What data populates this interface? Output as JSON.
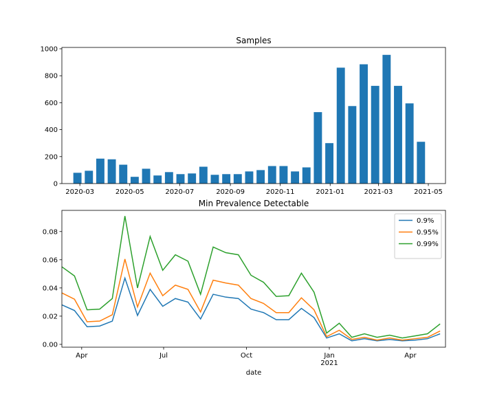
{
  "chart_data": [
    {
      "type": "bar",
      "title": "Samples",
      "xlabel": "",
      "ylabel": "",
      "color": "#1f77b4",
      "xlim": [
        "2020-02-08",
        "2021-05-22"
      ],
      "ylim": [
        0,
        1010
      ],
      "bar_width_days": 10,
      "x_ticks": [
        {
          "date": "2020-03-01",
          "label": "2020-03"
        },
        {
          "date": "2020-05-01",
          "label": "2020-05"
        },
        {
          "date": "2020-07-01",
          "label": "2020-07"
        },
        {
          "date": "2020-09-01",
          "label": "2020-09"
        },
        {
          "date": "2020-11-01",
          "label": "2020-11"
        },
        {
          "date": "2021-01-01",
          "label": "2021-01"
        },
        {
          "date": "2021-03-01",
          "label": "2021-03"
        },
        {
          "date": "2021-05-01",
          "label": "2021-05"
        }
      ],
      "y_ticks": [
        0,
        200,
        400,
        600,
        800,
        1000
      ],
      "dates": [
        "2020-02-27",
        "2020-03-12",
        "2020-03-26",
        "2020-04-09",
        "2020-04-23",
        "2020-05-07",
        "2020-05-21",
        "2020-06-04",
        "2020-06-18",
        "2020-07-02",
        "2020-07-16",
        "2020-07-30",
        "2020-08-13",
        "2020-08-27",
        "2020-09-10",
        "2020-09-24",
        "2020-10-08",
        "2020-10-22",
        "2020-11-05",
        "2020-11-19",
        "2020-12-03",
        "2020-12-17",
        "2020-12-31",
        "2021-01-14",
        "2021-01-28",
        "2021-02-11",
        "2021-02-25",
        "2021-03-11",
        "2021-03-25",
        "2021-04-08",
        "2021-04-22"
      ],
      "values": [
        80,
        95,
        185,
        180,
        140,
        50,
        110,
        60,
        85,
        70,
        75,
        125,
        65,
        70,
        70,
        90,
        100,
        130,
        130,
        90,
        120,
        530,
        300,
        860,
        575,
        885,
        725,
        955,
        725,
        595,
        310
      ],
      "grid": false
    },
    {
      "type": "line",
      "title": "Min Prevalence Detectable",
      "xlabel": "date",
      "ylabel": "",
      "xlim": [
        "2020-03-10",
        "2021-05-10"
      ],
      "ylim": [
        -0.002,
        0.095
      ],
      "x_ticks": [
        {
          "date": "2020-04-01",
          "label": "Apr",
          "sub": ""
        },
        {
          "date": "2020-07-01",
          "label": "Jul",
          "sub": ""
        },
        {
          "date": "2020-10-01",
          "label": "Oct",
          "sub": ""
        },
        {
          "date": "2021-01-01",
          "label": "Jan",
          "sub": "2021"
        },
        {
          "date": "2021-04-01",
          "label": "Apr",
          "sub": ""
        }
      ],
      "y_ticks": [
        {
          "value": 0.0,
          "label": "0.00"
        },
        {
          "value": 0.02,
          "label": "0.02"
        },
        {
          "value": 0.04,
          "label": "0.04"
        },
        {
          "value": 0.06,
          "label": "0.06"
        },
        {
          "value": 0.08,
          "label": "0.08"
        }
      ],
      "legend_position": "top-right",
      "dates": [
        "2020-03-10",
        "2020-03-24",
        "2020-04-07",
        "2020-04-21",
        "2020-05-05",
        "2020-05-19",
        "2020-06-02",
        "2020-06-16",
        "2020-06-30",
        "2020-07-14",
        "2020-07-28",
        "2020-08-11",
        "2020-08-25",
        "2020-09-08",
        "2020-09-22",
        "2020-10-06",
        "2020-10-20",
        "2020-11-03",
        "2020-11-17",
        "2020-12-01",
        "2020-12-15",
        "2020-12-29",
        "2021-01-12",
        "2021-01-26",
        "2021-02-09",
        "2021-02-23",
        "2021-03-09",
        "2021-03-23",
        "2021-04-06",
        "2021-04-20",
        "2021-05-04"
      ],
      "series": [
        {
          "name": "0.9%",
          "color": "#1f77b4",
          "values": [
            0.028,
            0.024,
            0.0125,
            0.013,
            0.0165,
            0.047,
            0.0205,
            0.039,
            0.027,
            0.0325,
            0.03,
            0.018,
            0.0355,
            0.0335,
            0.0325,
            0.025,
            0.0225,
            0.0175,
            0.0175,
            0.0255,
            0.019,
            0.0045,
            0.0075,
            0.0025,
            0.004,
            0.0025,
            0.0035,
            0.0025,
            0.003,
            0.004,
            0.0075
          ]
        },
        {
          "name": "0.95%",
          "color": "#ff7f0e",
          "values": [
            0.0365,
            0.032,
            0.016,
            0.0165,
            0.021,
            0.0605,
            0.0265,
            0.0505,
            0.0345,
            0.042,
            0.039,
            0.023,
            0.0455,
            0.0435,
            0.042,
            0.0325,
            0.029,
            0.0225,
            0.0225,
            0.033,
            0.0245,
            0.0055,
            0.01,
            0.0035,
            0.005,
            0.003,
            0.0045,
            0.003,
            0.004,
            0.005,
            0.0095
          ]
        },
        {
          "name": "0.99%",
          "color": "#2ca02c",
          "values": [
            0.055,
            0.0485,
            0.0245,
            0.025,
            0.0325,
            0.091,
            0.04,
            0.0765,
            0.0525,
            0.0635,
            0.059,
            0.0355,
            0.069,
            0.065,
            0.0635,
            0.049,
            0.044,
            0.034,
            0.0345,
            0.0505,
            0.037,
            0.008,
            0.015,
            0.005,
            0.0075,
            0.005,
            0.0065,
            0.0045,
            0.006,
            0.0075,
            0.0145
          ]
        }
      ],
      "grid": false
    }
  ]
}
